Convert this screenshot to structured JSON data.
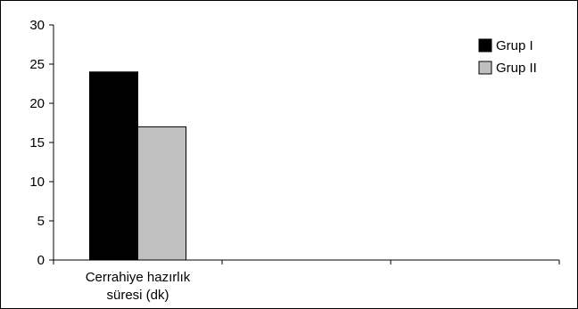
{
  "chart_data": {
    "type": "bar",
    "categories": [
      "Cerrahiye hazırlık süresi (dk)"
    ],
    "category_lines": [
      [
        "Cerrahiye hazırlık",
        "süresi (dk)"
      ]
    ],
    "category_slots": 3,
    "series": [
      {
        "name": "Grup I",
        "values": [
          24
        ],
        "color": "#000000"
      },
      {
        "name": "Grup II",
        "values": [
          17
        ],
        "color": "#c0c0c0"
      }
    ],
    "title": "",
    "xlabel": "",
    "ylabel": "",
    "ylim": [
      0,
      30
    ],
    "yticks": [
      0,
      5,
      10,
      15,
      20,
      25,
      30
    ],
    "grid": false,
    "legend_position": "top-right"
  }
}
